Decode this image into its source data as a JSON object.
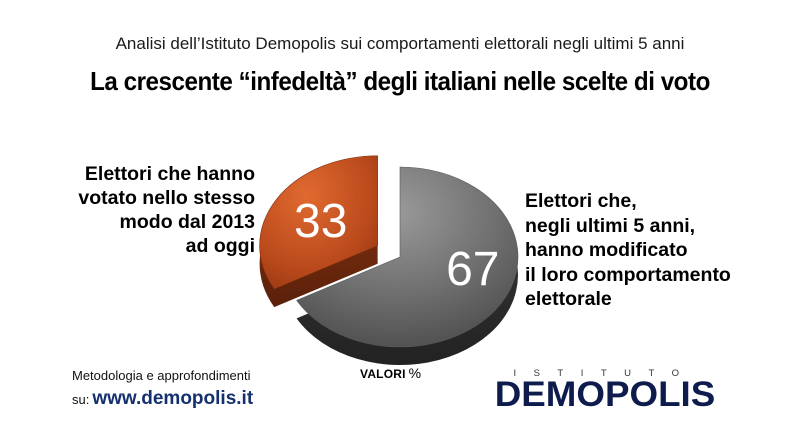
{
  "header": {
    "subtitle": "Analisi dell’Istituto Demopolis sui comportamenti elettorali negli ultimi 5 anni",
    "title": "La crescente “infedeltà” degli italiani nelle scelte di voto"
  },
  "chart_data": {
    "type": "pie",
    "title": "La crescente “infedeltà” degli italiani nelle scelte di voto",
    "unit_label": "VALORI",
    "unit_symbol": "%",
    "slices": [
      {
        "label": "Elettori che hanno votato nello stesso modo dal 2013 ad oggi",
        "label_lines": [
          "Elettori che hanno",
          "votato nello stesso",
          "modo dal 2013",
          "ad oggi"
        ],
        "value": 33,
        "display": "33",
        "color": "#b8481b",
        "exploded": true
      },
      {
        "label": "Elettori che, negli ultimi 5 anni, hanno modificato il loro comportamento elettorale",
        "label_lines": [
          "Elettori che,",
          "negli ultimi 5 anni,",
          "hanno modificato",
          "il loro comportamento",
          "elettorale"
        ],
        "value": 67,
        "display": "67",
        "color": "#6e6e6e",
        "exploded": false
      }
    ],
    "legend": "none"
  },
  "footer": {
    "method_label": "Metodologia e approfondimenti",
    "site_prefix": "su:",
    "site_url": "www.demopolis.it"
  },
  "logo": {
    "top_text": "ISTITUTO",
    "main_text": "DEMOPOLIS",
    "accent_color": "#f0a020",
    "text_color": "#0e1b4d"
  }
}
